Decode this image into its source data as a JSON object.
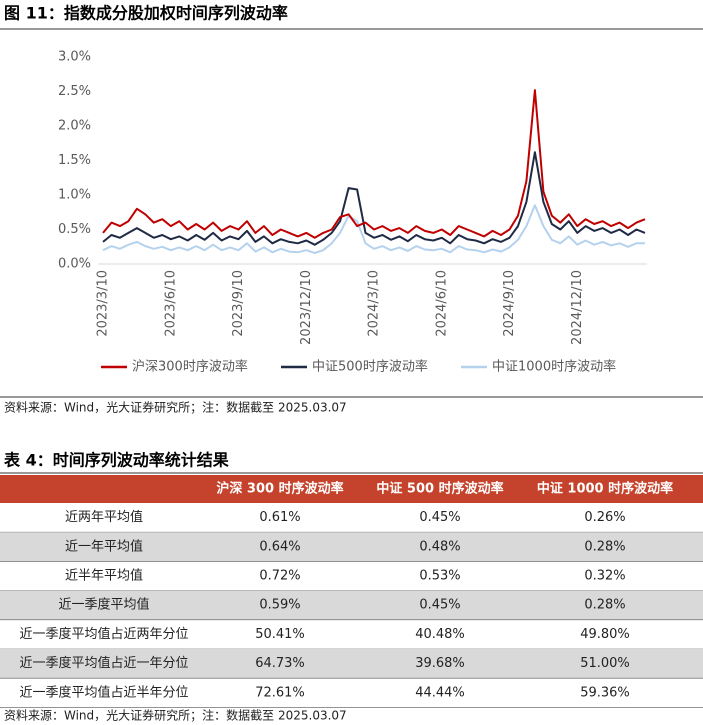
{
  "figure_title": "图 11：指数成分股加权时间序列波动率",
  "chart_data": {
    "type": "line",
    "categories": [
      "2023/3/10",
      null,
      null,
      null,
      null,
      null,
      null,
      null,
      "2023/6/10",
      null,
      null,
      null,
      null,
      null,
      null,
      null,
      "2023/9/10",
      null,
      null,
      null,
      null,
      null,
      null,
      null,
      "2023/12/10",
      null,
      null,
      null,
      null,
      null,
      null,
      null,
      "2024/3/10",
      null,
      null,
      null,
      null,
      null,
      null,
      null,
      "2024/6/10",
      null,
      null,
      null,
      null,
      null,
      null,
      null,
      "2024/9/10",
      null,
      null,
      null,
      null,
      null,
      null,
      null,
      "2024/12/10",
      null,
      null,
      null,
      null,
      null,
      null,
      null,
      null
    ],
    "ylim": [
      0,
      3.0
    ],
    "yticks": [
      {
        "value": 0,
        "label": "0.0%"
      },
      {
        "value": 0.5,
        "label": "0.5%"
      },
      {
        "value": 1.0,
        "label": "1.0%"
      },
      {
        "value": 1.5,
        "label": "1.5%"
      },
      {
        "value": 2.0,
        "label": "2.0%"
      },
      {
        "value": 2.5,
        "label": "2.5%"
      },
      {
        "value": 3.0,
        "label": "3.0%"
      }
    ],
    "grid": false,
    "series": [
      {
        "name": "沪深300时序波动率",
        "color": "#c00000",
        "values": [
          0.45,
          0.6,
          0.55,
          0.62,
          0.8,
          0.72,
          0.6,
          0.65,
          0.55,
          0.62,
          0.5,
          0.58,
          0.5,
          0.6,
          0.48,
          0.55,
          0.5,
          0.62,
          0.45,
          0.55,
          0.42,
          0.5,
          0.45,
          0.4,
          0.45,
          0.38,
          0.45,
          0.5,
          0.68,
          0.72,
          0.55,
          0.6,
          0.5,
          0.55,
          0.48,
          0.52,
          0.45,
          0.55,
          0.48,
          0.45,
          0.5,
          0.42,
          0.55,
          0.5,
          0.45,
          0.4,
          0.48,
          0.42,
          0.5,
          0.7,
          1.2,
          2.52,
          1.05,
          0.7,
          0.6,
          0.72,
          0.55,
          0.65,
          0.58,
          0.62,
          0.55,
          0.6,
          0.52,
          0.6,
          0.65
        ]
      },
      {
        "name": "中证500时序波动率",
        "color": "#1f2a44",
        "values": [
          0.32,
          0.42,
          0.38,
          0.45,
          0.52,
          0.45,
          0.38,
          0.42,
          0.36,
          0.4,
          0.34,
          0.42,
          0.35,
          0.45,
          0.34,
          0.4,
          0.36,
          0.48,
          0.32,
          0.4,
          0.3,
          0.36,
          0.32,
          0.3,
          0.34,
          0.28,
          0.35,
          0.45,
          0.62,
          1.1,
          1.08,
          0.45,
          0.38,
          0.42,
          0.35,
          0.4,
          0.33,
          0.42,
          0.36,
          0.34,
          0.38,
          0.3,
          0.42,
          0.36,
          0.34,
          0.3,
          0.36,
          0.32,
          0.38,
          0.55,
          0.9,
          1.62,
          0.9,
          0.58,
          0.5,
          0.62,
          0.45,
          0.55,
          0.48,
          0.52,
          0.45,
          0.5,
          0.42,
          0.5,
          0.45
        ]
      },
      {
        "name": "中证1000时序波动率",
        "color": "#b4d2ee",
        "values": [
          0.2,
          0.26,
          0.22,
          0.28,
          0.32,
          0.26,
          0.22,
          0.25,
          0.2,
          0.24,
          0.2,
          0.26,
          0.2,
          0.28,
          0.2,
          0.24,
          0.2,
          0.3,
          0.18,
          0.24,
          0.17,
          0.22,
          0.18,
          0.17,
          0.2,
          0.16,
          0.2,
          0.3,
          0.45,
          0.7,
          0.62,
          0.3,
          0.22,
          0.26,
          0.2,
          0.24,
          0.19,
          0.26,
          0.21,
          0.2,
          0.22,
          0.17,
          0.26,
          0.21,
          0.2,
          0.17,
          0.21,
          0.18,
          0.24,
          0.35,
          0.55,
          0.85,
          0.55,
          0.35,
          0.3,
          0.4,
          0.28,
          0.34,
          0.28,
          0.32,
          0.27,
          0.3,
          0.25,
          0.3,
          0.3
        ]
      }
    ]
  },
  "chart_source": "资料来源：Wind，光大证券研究所；注：数据截至 2025.03.07",
  "table": {
    "title": "表 4：时间序列波动率统计结果",
    "columns": [
      "沪深 300 时序波动率",
      "中证 500 时序波动率",
      "中证 1000 时序波动率"
    ],
    "rows": [
      [
        "近两年平均值",
        "0.61%",
        "0.45%",
        "0.26%"
      ],
      [
        "近一年平均值",
        "0.64%",
        "0.48%",
        "0.28%"
      ],
      [
        "近半年平均值",
        "0.72%",
        "0.53%",
        "0.32%"
      ],
      [
        "近一季度平均值",
        "0.59%",
        "0.45%",
        "0.28%"
      ],
      [
        "近一季度平均值占近两年分位",
        "50.41%",
        "40.48%",
        "49.80%"
      ],
      [
        "近一季度平均值占近一年分位",
        "64.73%",
        "39.68%",
        "51.00%"
      ],
      [
        "近一季度平均值占近半年分位",
        "72.61%",
        "44.44%",
        "59.36%"
      ]
    ]
  },
  "table_source": "资料来源：Wind，光大证券研究所；注：数据截至 2025.03.07"
}
